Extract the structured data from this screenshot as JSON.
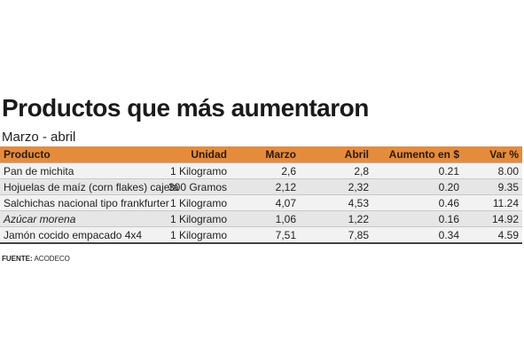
{
  "title": "Productos que más aumentaron",
  "subtitle": "Marzo - abril",
  "table": {
    "headers": [
      "Producto",
      "Unidad",
      "Marzo",
      "Abril",
      "Aumento en $",
      "Var %"
    ],
    "rows": [
      [
        "Pan de michita",
        "1 Kilogramo",
        "2,6",
        "2,8",
        "0.21",
        "8.00"
      ],
      [
        "Hojuelas de maíz (corn flakes) cajeta",
        "300 Gramos",
        "2,12",
        "2,32",
        "0.20",
        "9.35"
      ],
      [
        "Salchichas nacional tipo frankfurter",
        "1 Kilogramo",
        "4,07",
        "4,53",
        "0.46",
        "11.24"
      ],
      [
        "Azúcar morena",
        "1 Kilogramo",
        "1,06",
        "1,22",
        "0.16",
        "14.92"
      ],
      [
        "Jamón cocido empacado 4x4",
        "1 Kilogramo",
        "7,51",
        "7,85",
        "0.34",
        "4.59"
      ]
    ]
  },
  "source": {
    "label": "FUENTE:",
    "value": "ACODECO"
  },
  "colors": {
    "header_bg": "#e58b3c",
    "row_odd": "#f2f2f2",
    "row_even": "#e6e6e6"
  }
}
